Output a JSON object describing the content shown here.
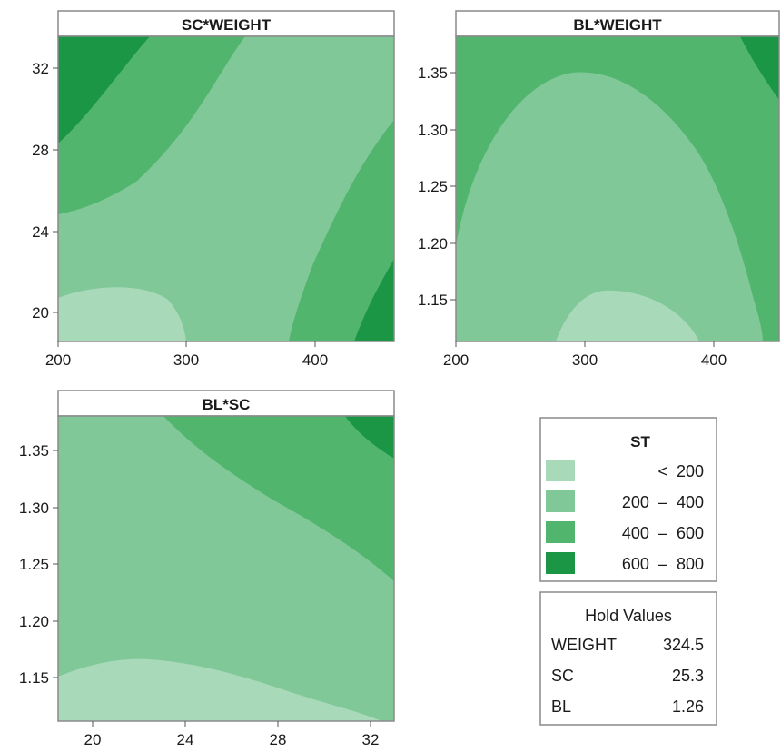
{
  "chart_data": {
    "type": "contour",
    "response": "ST",
    "levels": [
      {
        "label": "<  200",
        "min": null,
        "max": 200,
        "color": "#a8d9b8"
      },
      {
        "label": "200  –  400",
        "min": 200,
        "max": 400,
        "color": "#80c898"
      },
      {
        "label": "400  –  600",
        "min": 400,
        "max": 600,
        "color": "#52b56e"
      },
      {
        "label": "600  –  800",
        "min": 600,
        "max": 800,
        "color": "#1a9645"
      }
    ],
    "panels": [
      {
        "title": "SC*WEIGHT",
        "x": "WEIGHT",
        "y": "SC",
        "xlim": [
          200,
          460
        ],
        "ylim": [
          18.5,
          33.5
        ],
        "xticks": [
          "200",
          "300",
          "400"
        ],
        "yticks": [
          "20",
          "24",
          "28",
          "32"
        ],
        "regions_by_level": [
          "low center-left (bottom)",
          "diagonal middle band",
          "upper-left and lower-right",
          "top-left corner and bottom-right corner"
        ]
      },
      {
        "title": "BL*WEIGHT",
        "x": "WEIGHT",
        "y": "BL",
        "xlim": [
          200,
          460
        ],
        "ylim": [
          1.11,
          1.38
        ],
        "xticks": [
          "200",
          "300",
          "400"
        ],
        "yticks": [
          "1.35",
          "1.30",
          "1.25",
          "1.20",
          "1.15"
        ],
        "regions_by_level": [
          "bottom center near WEIGHT 330",
          "dome centered near WEIGHT 300",
          "surrounding edges",
          "top-right corner"
        ]
      },
      {
        "title": "BL*SC",
        "x": "SC",
        "y": "BL",
        "xlim": [
          19,
          33.5
        ],
        "ylim": [
          1.11,
          1.38
        ],
        "xticks": [
          "20",
          "24",
          "28",
          "32"
        ],
        "yticks": [
          "1.35",
          "1.30",
          "1.25",
          "1.20",
          "1.15"
        ],
        "regions_by_level": [
          "bottom band",
          "middle",
          "upper-right band",
          "top-right corner"
        ]
      }
    ],
    "legend": {
      "title": "ST",
      "entries": [
        "<  200",
        "200  –  400",
        "400  –  600",
        "600  –  800"
      ],
      "placement": "right"
    },
    "hold_values": {
      "title": "Hold Values",
      "rows": [
        {
          "name": "WEIGHT",
          "value": "324.5"
        },
        {
          "name": "SC",
          "value": "25.3"
        },
        {
          "name": "BL",
          "value": "1.26"
        }
      ]
    }
  }
}
